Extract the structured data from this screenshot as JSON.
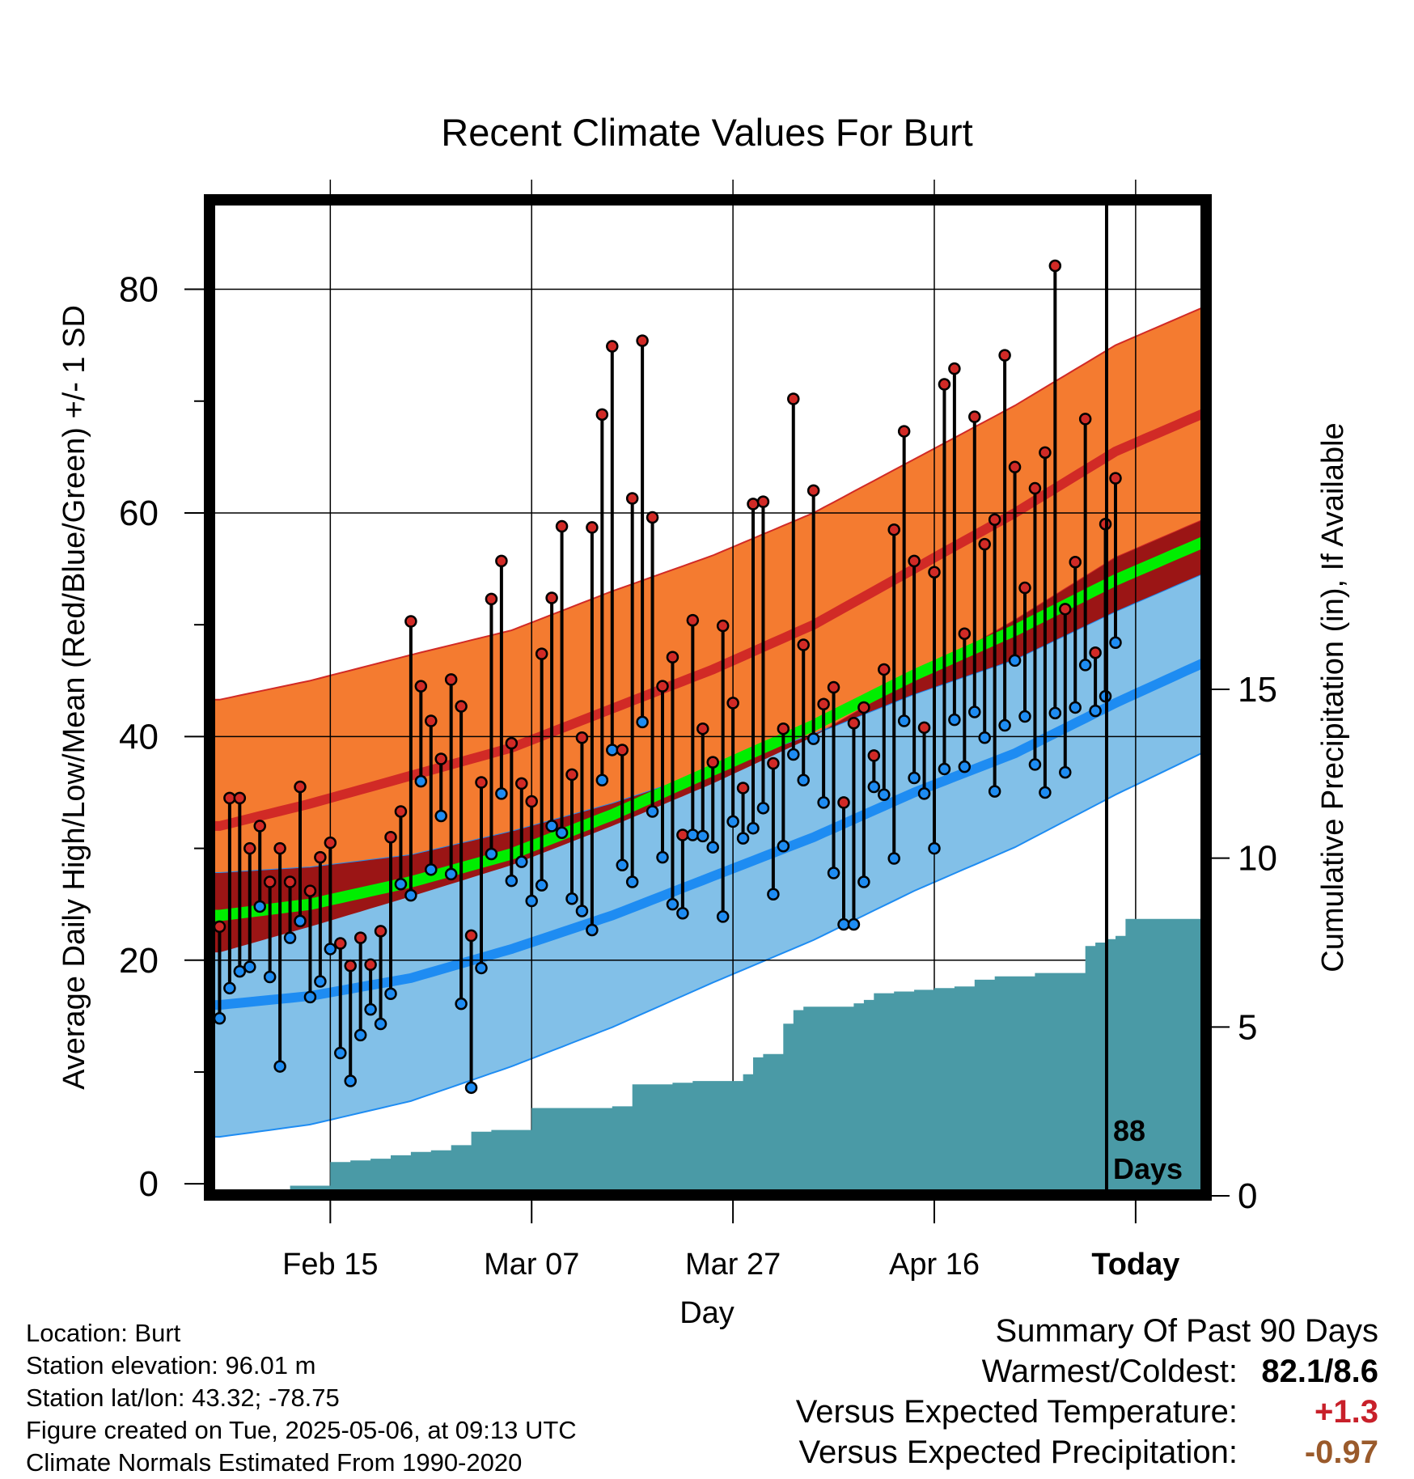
{
  "title": "Recent Climate Values For Burt",
  "chart_data": {
    "type": "line",
    "title": "Recent Climate Values For Burt",
    "xlabel": "Day",
    "ylabel": "Average Daily High/Low/Mean (Red/Blue/Green) +/- 1 SD",
    "y2label": "Cumulative Precipitation (in), If Available",
    "ylim": [
      -1,
      88
    ],
    "y2lim": [
      0,
      30
    ],
    "yticks": [
      "0",
      "20",
      "40",
      "60",
      "80"
    ],
    "y2ticks": [
      "0",
      "5",
      "10",
      "15"
    ],
    "xlim": [
      -90,
      9
    ],
    "xticks": [
      {
        "day": -78,
        "label": "Feb 15"
      },
      {
        "day": -58,
        "label": "Mar 07"
      },
      {
        "day": -38,
        "label": "Mar 27"
      },
      {
        "day": -18,
        "label": "Apr 16"
      },
      {
        "day": 2,
        "label": "Today"
      }
    ],
    "today_annotation": "88\nDays",
    "normals": {
      "days": [
        -89,
        -80,
        -70,
        -60,
        -50,
        -40,
        -30,
        -20,
        -10,
        0,
        9
      ],
      "high_mean": [
        32,
        34,
        36.5,
        39,
        42.5,
        46,
        50,
        55,
        60,
        65.5,
        69
      ],
      "high_sd": [
        11.3,
        11,
        10.8,
        10.5,
        10.5,
        10.2,
        10,
        9.8,
        9.6,
        9.5,
        9.5
      ],
      "low_mean": [
        16,
        16.8,
        18.4,
        21,
        24,
        27.5,
        31,
        35,
        38.5,
        43,
        46.7
      ],
      "low_sd": [
        11.8,
        11.5,
        11,
        10.5,
        10,
        9.5,
        9.2,
        8.8,
        8.4,
        8.2,
        8
      ],
      "mean_mean": [
        24,
        25,
        27,
        29.5,
        33,
        37,
        41,
        45.5,
        49.5,
        54,
        57.5
      ]
    },
    "series": [
      {
        "name": "High",
        "values": [
          23,
          34.5,
          34.5,
          30,
          32,
          27,
          30,
          27,
          35.5,
          26.2,
          29.2,
          30.5,
          21.5,
          19.5,
          22,
          19.6,
          22.6,
          31,
          33.3,
          50.3,
          44.5,
          41.4,
          38,
          45.1,
          42.7,
          22.2,
          35.9,
          52.3,
          55.7,
          39.4,
          35.8,
          34.2,
          47.4,
          52.4,
          58.8,
          36.6,
          39.9,
          58.7,
          68.8,
          74.9,
          38.8,
          61.3,
          75.4,
          59.6,
          44.5,
          47.1,
          31.2,
          50.4,
          40.7,
          37.7,
          49.9,
          43,
          35.4,
          60.8,
          61,
          37.6,
          40.7,
          70.2,
          48.2,
          62,
          42.9,
          44.4,
          34.1,
          41.2,
          42.6,
          38.3,
          46,
          58.5,
          67.3,
          55.7,
          40.8,
          54.7,
          71.5,
          72.9,
          49.2,
          68.6,
          57.2,
          59.4,
          74.1,
          64.1,
          53.3,
          62.2,
          65.4,
          82.1,
          51.4,
          55.6,
          68.4,
          47.5,
          59,
          63.1
        ]
      },
      {
        "name": "Low",
        "values": [
          14.8,
          17.5,
          19,
          19.4,
          24.8,
          18.5,
          10.5,
          22,
          23.5,
          16.7,
          18.1,
          21,
          11.7,
          9.2,
          13.3,
          15.6,
          14.3,
          17,
          26.8,
          25.8,
          36,
          28.1,
          32.9,
          27.7,
          16.1,
          8.6,
          19.3,
          29.5,
          34.9,
          27.1,
          28.8,
          25.3,
          26.7,
          32,
          31.4,
          25.5,
          24.4,
          22.7,
          36.1,
          38.8,
          28.5,
          27,
          41.3,
          33.3,
          29.2,
          25,
          24.2,
          31.2,
          31.1,
          30.1,
          23.9,
          32.4,
          30.9,
          31.8,
          33.6,
          25.9,
          30.2,
          38.4,
          36.1,
          39.8,
          34.1,
          27.8,
          23.2,
          23.2,
          27,
          35.5,
          34.8,
          29.1,
          41.4,
          36.3,
          34.9,
          30,
          37.1,
          41.5,
          37.3,
          42.2,
          39.9,
          35.1,
          41,
          46.8,
          41.8,
          37.5,
          35,
          42.1,
          36.8,
          42.6,
          46.4,
          42.3,
          43.6,
          48.4
        ]
      }
    ],
    "precipitation": {
      "days": [
        -89,
        -85,
        -82,
        -80,
        -78,
        -76,
        -74,
        -72,
        -70,
        -68,
        -66,
        -64,
        -62,
        -58,
        -56,
        -54,
        -52,
        -50,
        -48,
        -46,
        -44,
        -42,
        -40,
        -38,
        -37,
        -36,
        -35,
        -34,
        -33,
        -32,
        -31,
        -30,
        -29,
        -28,
        -27,
        -26,
        -25,
        -24,
        -22,
        -20,
        -18,
        -16,
        -14,
        -12,
        -10,
        -8,
        -6,
        -4,
        -3,
        -2,
        -1,
        0,
        1,
        9
      ],
      "values": [
        0,
        0.1,
        0.3,
        0.3,
        1,
        1.05,
        1.1,
        1.2,
        1.3,
        1.35,
        1.5,
        1.9,
        1.95,
        2.6,
        2.6,
        2.6,
        2.6,
        2.65,
        3.3,
        3.3,
        3.35,
        3.4,
        3.4,
        3.4,
        3.6,
        4.1,
        4.2,
        4.2,
        5.1,
        5.5,
        5.6,
        5.6,
        5.6,
        5.6,
        5.6,
        5.7,
        5.8,
        6,
        6.05,
        6.1,
        6.15,
        6.2,
        6.4,
        6.5,
        6.5,
        6.6,
        6.6,
        6.6,
        7.4,
        7.5,
        7.6,
        7.7,
        8.2,
        8.2
      ]
    }
  },
  "location_info": [
    "Location: Burt",
    "Station elevation: 96.01 m",
    "Station lat/lon: 43.32; -78.75",
    "Figure created on Tue, 2025-05-06, at 09:13 UTC",
    "Climate Normals Estimated From 1990-2020"
  ],
  "summary": {
    "heading": "Summary Of Past 90 Days",
    "warmest_coldest_label": "Warmest/Coldest:",
    "warmest_coldest_value": "82.1/8.6",
    "temp_label": "Versus Expected Temperature:",
    "temp_value": "+1.3",
    "temp_color": "#c8202a",
    "precip_label": "Versus Expected Precipitation:",
    "precip_value": "-0.97",
    "precip_color": "#9a5a2b"
  },
  "colors": {
    "high_band": "#f47b30",
    "high_line": "#d12a26",
    "low_band": "#82c0e8",
    "low_line": "#1e8cf2",
    "mean_line": "#00ee00",
    "overlap_band": "#9b1515",
    "precip": "#4a9aa6",
    "high_marker": "#d12a26",
    "low_marker": "#1e8cf2"
  }
}
